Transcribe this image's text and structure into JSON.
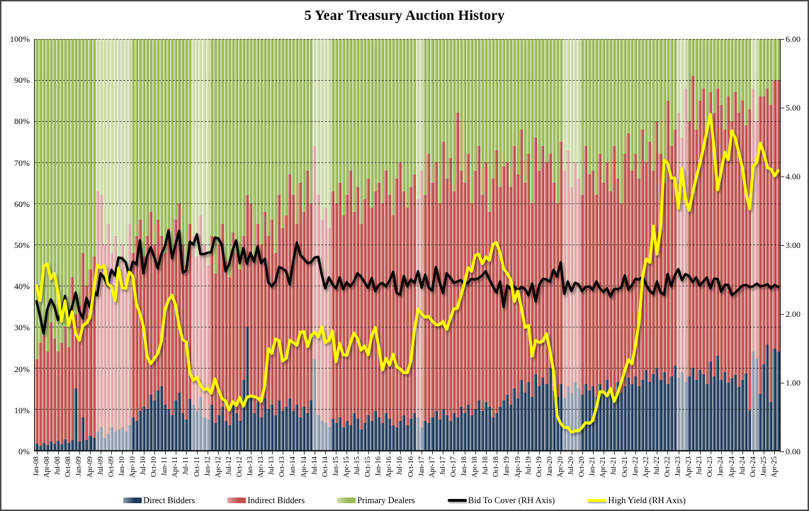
{
  "title": "5 Year Treasury Auction History",
  "colors": {
    "direct": "#1F3B5C",
    "indirect": "#C0504D",
    "dealers": "#9BBB59",
    "bid_to_cover_line": "#000000",
    "high_yield_line": "#FFFF00",
    "gridline": "#141414",
    "border": "#4A4A4A"
  },
  "left_axis": {
    "labels": [
      "100%",
      "90%",
      "80%",
      "70%",
      "60%",
      "50%",
      "40%",
      "30%",
      "20%",
      "10%",
      "0%"
    ],
    "min": 0,
    "max": 100,
    "step": 10,
    "unit": "%"
  },
  "right_axis": {
    "labels": [
      "6.00",
      "5.00",
      "4.00",
      "3.00",
      "2.00",
      "1.00",
      "0.00"
    ],
    "min": 0,
    "max": 6,
    "step": 1
  },
  "x_axis": {
    "labels": [
      "Jan-08",
      "Apr-08",
      "Jul-08",
      "Oct-08",
      "Jan-09",
      "Apr-09",
      "Jul-09",
      "Oct-09",
      "Jan-10",
      "Apr-10",
      "Jul-10",
      "Oct-10",
      "Jan-11",
      "Apr-11",
      "Jul-11",
      "Oct-11",
      "Jan-12",
      "Apr-12",
      "Jul-12",
      "Oct-12",
      "Jan-13",
      "Apr-13",
      "Jul-13",
      "Oct-13",
      "Jan-14",
      "Apr-14",
      "Jul-14",
      "Oct-14",
      "Jan-15",
      "Apr-15",
      "Jul-15",
      "Oct-15",
      "Jan-16",
      "Apr-16",
      "Jul-16",
      "Oct-16",
      "Jan-17",
      "Apr-17",
      "Jul-17",
      "Oct-17",
      "Jan-18",
      "Apr-18",
      "Jul-18",
      "Oct-18",
      "Jan-19",
      "Apr-19",
      "Jul-19",
      "Oct-19",
      "Jan-20",
      "Apr-20",
      "Jul-20",
      "Oct-20",
      "Jan-21",
      "Apr-21",
      "Jul-21",
      "Oct-21",
      "Jan-22",
      "Apr-22",
      "Jul-22",
      "Oct-22",
      "Jan-23",
      "Apr-23",
      "Jul-23",
      "Oct-23",
      "Jan-24",
      "Apr-24",
      "Jul-24",
      "Oct-24",
      "Jan-25",
      "Apr-25"
    ],
    "label_every_n_bars": 3
  },
  "legend": [
    {
      "label": "Direct Bidders",
      "swatch": "bar",
      "color": "#1F3B5C"
    },
    {
      "label": "Indirect Bidders",
      "swatch": "bar",
      "color": "#C0504D"
    },
    {
      "label": "Primary Dealers",
      "swatch": "bar",
      "color": "#9BBB59"
    },
    {
      "label": "Bid To Cover (RH Axis)",
      "swatch": "line",
      "color": "#000000"
    },
    {
      "label": "High Yield (RH Axis)",
      "swatch": "line",
      "color": "#FFFF00"
    }
  ],
  "chart_data": {
    "type": "combo: 100%-stacked monthly bars + two lines on right axis",
    "x_start": "Jan-08",
    "x_end": "May-25",
    "frequency": "monthly",
    "n_points": 209,
    "grid": "horizontal dashed every 10%",
    "legend_position": "bottom center",
    "series": [
      {
        "name": "Direct Bidders",
        "type": "bar",
        "axis": "left",
        "unit": "%",
        "values": [
          1.5,
          1.0,
          1.8,
          1.2,
          2.0,
          1.5,
          2.2,
          1.4,
          2.6,
          1.8,
          2.4,
          15.0,
          2.0,
          8.0,
          2.5,
          3.5,
          3.0,
          4.5,
          5.5,
          3.0,
          4.0,
          5.5,
          4.5,
          5.0,
          5.5,
          4.5,
          6.0,
          8.0,
          7.0,
          9.5,
          10.5,
          10.0,
          13.5,
          12.0,
          14.5,
          15.5,
          11.0,
          10.0,
          8.5,
          12.0,
          14.0,
          9.0,
          7.5,
          12.5,
          11.0,
          9.5,
          13.0,
          8.0,
          7.5,
          11.0,
          6.5,
          8.5,
          10.5,
          7.0,
          6.0,
          12.0,
          9.0,
          7.0,
          17.0,
          30.0,
          13.0,
          9.0,
          11.5,
          8.0,
          12.5,
          10.0,
          11.0,
          8.5,
          12.0,
          9.5,
          10.5,
          12.5,
          9.5,
          11.0,
          8.0,
          10.5,
          9.0,
          12.0,
          22.0,
          8.5,
          7.0,
          6.5,
          5.5,
          7.5,
          6.5,
          8.0,
          5.5,
          7.0,
          6.0,
          9.0,
          7.5,
          5.0,
          6.5,
          8.5,
          7.0,
          9.5,
          8.0,
          6.5,
          9.0,
          7.5,
          6.0,
          5.5,
          7.0,
          8.5,
          6.0,
          7.5,
          9.0,
          8.0,
          5.5,
          7.0,
          6.5,
          8.0,
          9.5,
          7.5,
          10.0,
          8.5,
          7.0,
          9.0,
          8.0,
          10.5,
          9.0,
          11.0,
          8.5,
          10.0,
          12.0,
          9.5,
          11.5,
          10.5,
          8.0,
          9.0,
          10.5,
          12.0,
          13.5,
          11.0,
          15.0,
          12.5,
          17.0,
          14.0,
          16.5,
          13.0,
          18.5,
          15.5,
          17.5,
          16.0,
          20.0,
          14.5,
          13.0,
          16.0,
          12.5,
          15.5,
          14.0,
          16.5,
          15.0,
          13.5,
          16.0,
          14.5,
          15.5,
          13.0,
          16.0,
          14.5,
          17.0,
          15.0,
          13.5,
          16.5,
          14.0,
          15.5,
          17.5,
          16.0,
          18.0,
          15.5,
          17.0,
          19.5,
          16.5,
          18.5,
          20.0,
          17.0,
          19.0,
          16.0,
          18.0,
          20.5,
          17.5,
          19.0,
          16.5,
          18.0,
          20.0,
          17.0,
          19.5,
          18.5,
          16.0,
          21.5,
          18.0,
          23.0,
          17.0,
          18.9,
          16.3,
          17.4,
          18.3,
          15.4,
          17.1,
          18.6,
          9.7,
          24.0,
          22.3,
          13.7,
          20.9,
          25.7,
          11.7,
          24.6,
          24.0
        ]
      },
      {
        "name": "Indirect Bidders",
        "type": "bar",
        "axis": "left",
        "unit": "%",
        "values": [
          20.5,
          25.0,
          26.2,
          22.8,
          29.0,
          25.5,
          21.8,
          24.6,
          27.4,
          23.2,
          39.6,
          18.0,
          33.0,
          40.0,
          37.5,
          40.5,
          44.0,
          58.5,
          56.5,
          47.0,
          51.0,
          42.5,
          47.5,
          40.0,
          44.5,
          40.5,
          49.0,
          40.0,
          45.0,
          46.5,
          36.5,
          42.0,
          44.5,
          38.0,
          41.5,
          36.5,
          37.0,
          44.0,
          38.5,
          44.0,
          46.0,
          41.0,
          37.5,
          42.5,
          41.0,
          37.5,
          44.0,
          42.0,
          37.5,
          41.0,
          36.5,
          41.5,
          44.5,
          39.0,
          36.0,
          41.0,
          39.0,
          37.0,
          35.0,
          32.0,
          47.0,
          38.0,
          43.5,
          42.0,
          45.5,
          42.0,
          45.0,
          39.5,
          50.0,
          44.5,
          46.5,
          54.5,
          52.5,
          44.0,
          57.0,
          47.5,
          59.0,
          48.0,
          52.0,
          53.5,
          49.0,
          52.5,
          48.5,
          55.5,
          53.5,
          57.0,
          51.5,
          55.0,
          62.0,
          49.0,
          56.5,
          50.0,
          54.5,
          57.5,
          52.0,
          53.5,
          57.0,
          53.5,
          59.0,
          54.5,
          51.0,
          60.5,
          63.0,
          54.5,
          53.0,
          56.5,
          58.0,
          53.0,
          62.5,
          55.0,
          65.5,
          57.0,
          60.5,
          52.5,
          65.0,
          57.5,
          64.0,
          54.0,
          74.0,
          57.5,
          56.0,
          61.0,
          51.5,
          58.0,
          62.0,
          52.5,
          58.5,
          47.5,
          58.0,
          64.0,
          53.5,
          57.0,
          56.5,
          53.0,
          59.0,
          54.5,
          61.0,
          51.0,
          55.5,
          47.0,
          57.5,
          52.5,
          56.5,
          54.0,
          52.0,
          50.5,
          47.0,
          59.0,
          55.5,
          57.5,
          50.0,
          53.5,
          51.0,
          48.5,
          58.0,
          52.5,
          52.5,
          49.0,
          56.0,
          50.5,
          53.0,
          48.0,
          60.5,
          49.5,
          46.0,
          56.5,
          59.5,
          52.0,
          54.0,
          50.5,
          61.0,
          50.5,
          58.5,
          49.5,
          60.0,
          55.0,
          46.0,
          69.0,
          56.0,
          57.5,
          64.5,
          57.0,
          71.5,
          62.0,
          71.0,
          61.0,
          65.5,
          69.5,
          60.0,
          65.5,
          64.0,
          65.0,
          67.0,
          59.1,
          69.7,
          62.6,
          68.7,
          66.6,
          67.9,
          60.4,
          73.3,
          64.0,
          57.7,
          72.3,
          65.1,
          62.3,
          72.3,
          65.4,
          66.0
        ]
      },
      {
        "name": "Primary Dealers",
        "type": "bar",
        "axis": "left",
        "unit": "%",
        "values_note": "derived remainder: 100 - Direct Bidders - Indirect Bidders (100% stacked chart)"
      },
      {
        "name": "Bid To Cover (RH Axis)",
        "type": "line",
        "axis": "right",
        "values": [
          2.17,
          1.95,
          1.7,
          2.05,
          2.2,
          2.1,
          1.9,
          2.0,
          2.25,
          1.95,
          2.1,
          2.3,
          2.03,
          1.92,
          2.22,
          2.08,
          2.32,
          2.26,
          2.58,
          2.51,
          2.4,
          2.63,
          2.55,
          2.81,
          2.8,
          2.74,
          2.55,
          2.75,
          2.71,
          3.06,
          2.58,
          2.83,
          2.96,
          2.82,
          2.65,
          2.86,
          2.97,
          3.2,
          2.8,
          3.0,
          3.2,
          2.59,
          2.62,
          3.04,
          3.0,
          3.15,
          2.86,
          2.86,
          2.88,
          2.89,
          3.1,
          3.09,
          2.99,
          2.61,
          2.71,
          2.92,
          3.06,
          2.73,
          2.95,
          2.72,
          2.88,
          2.75,
          2.97,
          2.73,
          2.79,
          2.45,
          2.39,
          2.46,
          2.67,
          2.65,
          2.61,
          2.42,
          2.75,
          3.03,
          2.85,
          2.79,
          2.73,
          2.74,
          2.81,
          2.82,
          2.56,
          2.36,
          2.52,
          2.42,
          2.36,
          2.52,
          2.35,
          2.45,
          2.39,
          2.46,
          2.58,
          2.53,
          2.45,
          2.37,
          2.51,
          2.32,
          2.41,
          2.44,
          2.39,
          2.47,
          2.6,
          2.29,
          2.27,
          2.54,
          2.39,
          2.49,
          2.44,
          2.61,
          2.37,
          2.56,
          2.37,
          2.33,
          2.67,
          2.46,
          2.29,
          2.58,
          2.52,
          2.44,
          2.46,
          2.48,
          2.43,
          2.44,
          2.5,
          2.49,
          2.51,
          2.55,
          2.61,
          2.49,
          2.39,
          2.3,
          2.46,
          2.09,
          2.4,
          2.35,
          2.39,
          2.33,
          2.38,
          2.35,
          2.26,
          2.43,
          2.17,
          2.41,
          2.5,
          2.49,
          2.46,
          2.63,
          2.53,
          2.74,
          2.28,
          2.46,
          2.32,
          2.44,
          2.42,
          2.32,
          2.38,
          2.39,
          2.34,
          2.46,
          2.36,
          2.31,
          2.36,
          2.24,
          2.35,
          2.35,
          2.37,
          2.55,
          2.34,
          2.41,
          2.5,
          2.49,
          2.53,
          2.41,
          2.32,
          2.28,
          2.46,
          2.3,
          2.27,
          2.57,
          2.39,
          2.55,
          2.64,
          2.48,
          2.57,
          2.54,
          2.45,
          2.52,
          2.4,
          2.46,
          2.52,
          2.36,
          2.5,
          2.5,
          2.31,
          2.41,
          2.41,
          2.26,
          2.3,
          2.35,
          2.4,
          2.41,
          2.38,
          2.39,
          2.43,
          2.39,
          2.4,
          2.42,
          2.36,
          2.41,
          2.38
        ]
      },
      {
        "name": "High Yield (RH Axis)",
        "type": "line",
        "axis": "right",
        "values": [
          2.4,
          2.18,
          2.68,
          2.72,
          2.5,
          2.58,
          2.3,
          1.88,
          2.18,
          1.82,
          2.02,
          1.7,
          1.6,
          1.82,
          1.85,
          1.94,
          2.31,
          2.7,
          2.66,
          2.69,
          2.42,
          2.39,
          2.18,
          2.66,
          2.37,
          2.36,
          2.6,
          2.54,
          2.13,
          2.0,
          1.8,
          1.37,
          1.26,
          1.33,
          1.41,
          1.58,
          2.04,
          2.19,
          2.26,
          2.12,
          1.81,
          1.61,
          1.58,
          1.12,
          1.02,
          1.06,
          0.94,
          0.88,
          0.9,
          0.83,
          1.04,
          0.89,
          0.75,
          0.72,
          0.58,
          0.71,
          0.65,
          0.77,
          0.64,
          0.77,
          0.79,
          0.78,
          0.76,
          0.71,
          0.94,
          1.48,
          1.41,
          1.62,
          1.6,
          1.3,
          1.34,
          1.6,
          1.57,
          1.53,
          1.72,
          1.73,
          1.51,
          1.67,
          1.72,
          1.65,
          1.8,
          1.57,
          1.6,
          1.74,
          1.29,
          1.56,
          1.39,
          1.38,
          1.56,
          1.71,
          1.63,
          1.46,
          1.52,
          1.39,
          1.67,
          1.79,
          1.5,
          1.17,
          1.34,
          1.24,
          1.4,
          1.22,
          1.18,
          1.13,
          1.13,
          1.3,
          1.76,
          2.06,
          1.99,
          1.94,
          1.95,
          1.88,
          1.83,
          1.83,
          1.88,
          1.76,
          1.91,
          2.06,
          2.07,
          2.25,
          2.43,
          2.66,
          2.61,
          2.84,
          2.86,
          2.72,
          2.82,
          2.77,
          3.0,
          3.03,
          2.88,
          2.65,
          2.58,
          2.49,
          2.17,
          2.32,
          2.07,
          1.79,
          1.82,
          1.37,
          1.6,
          1.57,
          1.59,
          1.7,
          1.45,
          1.15,
          0.5,
          0.39,
          0.33,
          0.33,
          0.26,
          0.28,
          0.28,
          0.33,
          0.4,
          0.39,
          0.43,
          0.62,
          0.85,
          0.85,
          0.79,
          0.9,
          0.71,
          0.83,
          0.99,
          1.16,
          1.32,
          1.26,
          1.53,
          1.88,
          2.54,
          2.79,
          2.74,
          3.27,
          2.86,
          3.23,
          4.23,
          4.19,
          3.97,
          3.97,
          3.53,
          4.11,
          3.67,
          3.5,
          3.75,
          3.97,
          4.17,
          4.4,
          4.66,
          4.9,
          4.42,
          3.8,
          4.06,
          4.35,
          4.24,
          4.66,
          4.55,
          4.33,
          4.12,
          3.74,
          3.52,
          4.14,
          4.2,
          4.48,
          4.33,
          4.12,
          4.1,
          4.0,
          4.08
        ]
      }
    ],
    "pale_months": [
      17,
      18,
      19,
      20,
      21,
      22,
      23,
      24,
      25,
      26,
      44,
      45,
      46,
      47,
      48,
      78,
      79,
      80,
      81,
      82,
      107,
      108,
      148,
      149,
      150,
      151,
      152,
      180,
      181,
      182,
      201,
      202
    ]
  }
}
